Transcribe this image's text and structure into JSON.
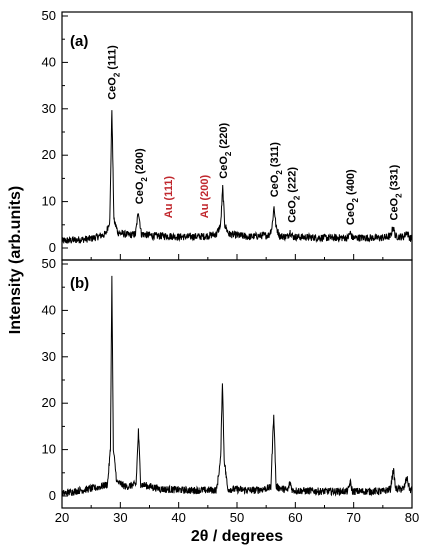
{
  "chart_data": [
    {
      "type": "line",
      "panel_label": "(a)",
      "xlim": [
        20,
        80
      ],
      "ylim": [
        0,
        50
      ],
      "yticks": [
        0,
        10,
        20,
        30,
        40,
        50
      ],
      "series_points": [
        [
          20,
          1.5
        ],
        [
          25,
          2.0
        ],
        [
          27.5,
          3.0
        ],
        [
          28.2,
          6
        ],
        [
          28.55,
          30
        ],
        [
          28.9,
          6
        ],
        [
          29.6,
          3.3
        ],
        [
          31.5,
          2.8
        ],
        [
          32.6,
          3.0
        ],
        [
          33.1,
          8
        ],
        [
          33.6,
          3.0
        ],
        [
          36,
          2.6
        ],
        [
          38.2,
          2.6
        ],
        [
          40,
          2.4
        ],
        [
          44.4,
          2.5
        ],
        [
          46.5,
          3.0
        ],
        [
          47.2,
          5
        ],
        [
          47.55,
          13
        ],
        [
          47.9,
          5
        ],
        [
          48.6,
          3.0
        ],
        [
          52,
          2.4
        ],
        [
          55.5,
          2.8
        ],
        [
          56.0,
          4.5
        ],
        [
          56.35,
          9.0
        ],
        [
          56.7,
          4.5
        ],
        [
          57.3,
          2.6
        ],
        [
          58.6,
          2.4
        ],
        [
          59.1,
          3.5
        ],
        [
          59.6,
          2.4
        ],
        [
          65,
          2.2
        ],
        [
          69.0,
          2.2
        ],
        [
          69.4,
          3.3
        ],
        [
          69.8,
          2.2
        ],
        [
          75,
          2.2
        ],
        [
          76.3,
          2.5
        ],
        [
          76.75,
          4.5
        ],
        [
          77.2,
          2.5
        ],
        [
          78.6,
          2.4
        ],
        [
          79.1,
          3.5
        ],
        [
          79.6,
          2.2
        ],
        [
          80,
          2.0
        ]
      ],
      "peak_labels": [
        {
          "formula": "CeO",
          "subscript": "2",
          "hkl": " (111)",
          "x": 28.5,
          "y": 31.5,
          "color": "#000000"
        },
        {
          "formula": "CeO",
          "subscript": "2",
          "hkl": " (200)",
          "x": 33.2,
          "y": 9.0,
          "color": "#000000"
        },
        {
          "formula": "Au (111)",
          "subscript": "",
          "hkl": "",
          "x": 38.2,
          "y": 6.0,
          "color": "#c0272d"
        },
        {
          "formula": "Au (200)",
          "subscript": "",
          "hkl": "",
          "x": 44.3,
          "y": 6.0,
          "color": "#c0272d"
        },
        {
          "formula": "CeO",
          "subscript": "2",
          "hkl": " (220)",
          "x": 47.6,
          "y": 14.5,
          "color": "#000000"
        },
        {
          "formula": "CeO",
          "subscript": "2",
          "hkl": " (311)",
          "x": 56.3,
          "y": 10.5,
          "color": "#000000"
        },
        {
          "formula": "CeO",
          "subscript": "2",
          "hkl": " (222)",
          "x": 59.3,
          "y": 5.0,
          "color": "#000000"
        },
        {
          "formula": "CeO",
          "subscript": "2",
          "hkl": " (400)",
          "x": 69.4,
          "y": 4.5,
          "color": "#000000"
        },
        {
          "formula": "CeO",
          "subscript": "2",
          "hkl": " (331)",
          "x": 76.8,
          "y": 5.5,
          "color": "#000000"
        }
      ]
    },
    {
      "type": "line",
      "panel_label": "(b)",
      "xlim": [
        20,
        80
      ],
      "ylim": [
        0,
        50
      ],
      "yticks": [
        0,
        10,
        20,
        30,
        40,
        50
      ],
      "series_points": [
        [
          20,
          0.5
        ],
        [
          23,
          1.2
        ],
        [
          26,
          1.8
        ],
        [
          27.8,
          2.5
        ],
        [
          28.3,
          10
        ],
        [
          28.55,
          47
        ],
        [
          28.8,
          10
        ],
        [
          29.4,
          3
        ],
        [
          31,
          2.0
        ],
        [
          32.7,
          2.5
        ],
        [
          33.1,
          14
        ],
        [
          33.5,
          2.5
        ],
        [
          37,
          1.5
        ],
        [
          42,
          1.2
        ],
        [
          46.5,
          1.3
        ],
        [
          47.2,
          8
        ],
        [
          47.5,
          25
        ],
        [
          47.8,
          8
        ],
        [
          48.4,
          1.5
        ],
        [
          53,
          1.2
        ],
        [
          55.8,
          1.8
        ],
        [
          56.3,
          18
        ],
        [
          56.7,
          2
        ],
        [
          58.7,
          1.2
        ],
        [
          59.1,
          3.0
        ],
        [
          59.5,
          1.2
        ],
        [
          65,
          1.0
        ],
        [
          69.0,
          1.0
        ],
        [
          69.4,
          3.0
        ],
        [
          69.8,
          1.0
        ],
        [
          75,
          1.0
        ],
        [
          76.3,
          1.5
        ],
        [
          76.8,
          5.8
        ],
        [
          77.2,
          1.5
        ],
        [
          78.6,
          1.5
        ],
        [
          79.1,
          4.0
        ],
        [
          79.6,
          1.5
        ],
        [
          80,
          1.0
        ]
      ]
    }
  ],
  "x_axis": {
    "ticks": [
      20,
      30,
      40,
      50,
      60,
      70,
      80
    ],
    "title": "2θ / degrees"
  },
  "y_axis": {
    "title": "Intensity (arb.units)"
  },
  "colors": {
    "trace": "#000000",
    "au_label": "#c0272d",
    "ceo2_label": "#000000"
  }
}
